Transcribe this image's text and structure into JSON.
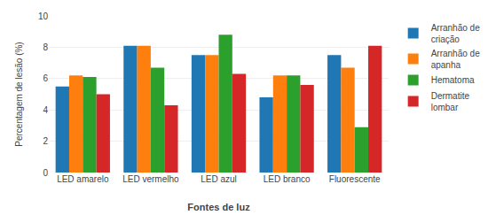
{
  "chart_data": {
    "type": "bar",
    "xlabel": "Fontes de luz",
    "ylabel": "Percentagem de lesão (%)",
    "categories": [
      "LED amarelo",
      "LED vermelho",
      "LED azul",
      "LED branco",
      "Fluorescente"
    ],
    "series": [
      {
        "name": "Arranhão de\ncriação",
        "values": [
          5.5,
          8.1,
          7.5,
          4.8,
          7.5
        ]
      },
      {
        "name": "Arranhão de\napanha",
        "values": [
          6.2,
          8.1,
          7.5,
          6.2,
          6.7
        ]
      },
      {
        "name": "Hematoma",
        "values": [
          6.1,
          6.7,
          8.8,
          6.2,
          2.9
        ]
      },
      {
        "name": "Dermatite\nlombar",
        "values": [
          5.0,
          4.3,
          6.3,
          5.6,
          8.1
        ]
      }
    ],
    "ylim": [
      0,
      10
    ],
    "yticks": [
      0,
      2,
      4,
      6,
      8,
      10
    ],
    "grid": true,
    "legend": "upper right"
  }
}
